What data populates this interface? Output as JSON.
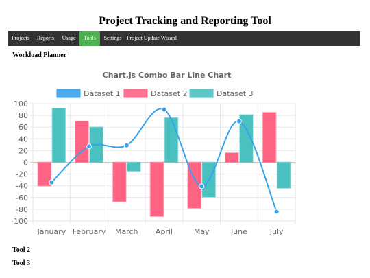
{
  "page": {
    "title": "Project Tracking and Reporting Tool"
  },
  "nav": {
    "items": [
      {
        "label": "Projects"
      },
      {
        "label": "Reports"
      },
      {
        "label": "Usage"
      },
      {
        "label": "Tools",
        "active": true
      },
      {
        "label": "Settings"
      },
      {
        "label": "Project Update Wizard"
      }
    ]
  },
  "sections": {
    "tool1": "Workload Planner",
    "tool2": "Tool 2",
    "tool3": "Tool 3"
  },
  "chart_data": {
    "type": "bar",
    "title": "Chart.js Combo Bar Line Chart",
    "categories": [
      "January",
      "February",
      "March",
      "April",
      "May",
      "June",
      "July"
    ],
    "ylim": [
      -100,
      100
    ],
    "yticks": [
      100,
      80,
      60,
      40,
      20,
      0,
      -20,
      -40,
      -60,
      -80,
      -100
    ],
    "grid": true,
    "legend_position": "top",
    "series": [
      {
        "name": "Dataset 1",
        "type": "line",
        "color": "#36A2EB",
        "values": [
          -34,
          27,
          29,
          90,
          -41,
          70,
          -84
        ]
      },
      {
        "name": "Dataset 2",
        "type": "bar",
        "color": "#FF6384",
        "values": [
          -40,
          70,
          -67,
          -92,
          -78,
          16,
          85
        ]
      },
      {
        "name": "Dataset 3",
        "type": "bar",
        "color": "#4BC0C0",
        "values": [
          92,
          60,
          -15,
          76,
          -59,
          81,
          -44
        ]
      }
    ]
  }
}
